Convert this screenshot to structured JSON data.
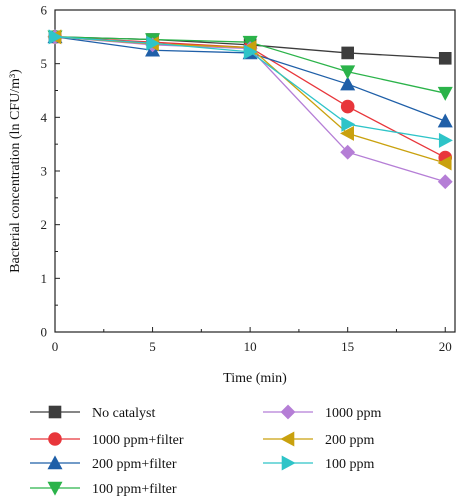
{
  "chart_data": {
    "type": "line",
    "title": "",
    "xlabel": "Time (min)",
    "ylabel": "Bacterial concentration (ln CFU/m³)",
    "x": [
      0,
      5,
      10,
      15,
      20
    ],
    "xlim": [
      0,
      20.5
    ],
    "ylim": [
      0,
      6
    ],
    "xticks": [
      "0",
      "5",
      "10",
      "15",
      "20"
    ],
    "yticks": [
      "0",
      "1",
      "2",
      "3",
      "4",
      "5",
      "6"
    ],
    "grid": false,
    "legend_position": "bottom",
    "series": [
      {
        "name": "No catalyst",
        "color": "#3d3d3d",
        "marker": "square",
        "values": [
          5.5,
          5.45,
          5.35,
          5.2,
          5.1
        ]
      },
      {
        "name": "1000 ppm+filter",
        "color": "#e8363b",
        "marker": "circle",
        "values": [
          5.5,
          5.4,
          5.3,
          4.2,
          3.25
        ]
      },
      {
        "name": "200 ppm+filter",
        "color": "#1f5fa8",
        "marker": "triangle-up",
        "values": [
          5.5,
          5.25,
          5.2,
          4.62,
          3.93
        ]
      },
      {
        "name": "100 ppm+filter",
        "color": "#2bb34a",
        "marker": "triangle-down",
        "values": [
          5.5,
          5.45,
          5.4,
          4.85,
          4.45
        ]
      },
      {
        "name": "1000 ppm",
        "color": "#b57ed6",
        "marker": "diamond",
        "values": [
          5.5,
          5.35,
          5.28,
          3.35,
          2.8
        ]
      },
      {
        "name": "200 ppm",
        "color": "#c9a10e",
        "marker": "triangle-left",
        "values": [
          5.5,
          5.37,
          5.3,
          3.7,
          3.15
        ]
      },
      {
        "name": "100 ppm",
        "color": "#2ec4c8",
        "marker": "triangle-right",
        "values": [
          5.5,
          5.38,
          5.22,
          3.87,
          3.57
        ]
      }
    ]
  }
}
